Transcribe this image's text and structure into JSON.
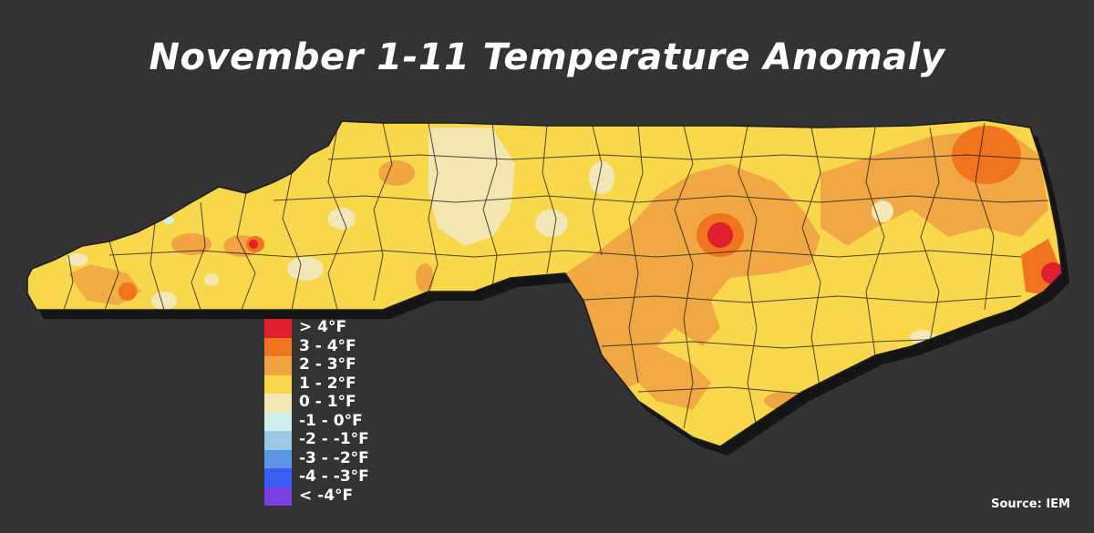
{
  "title": "November 1-11 Temperature Anomaly",
  "source": "Source: IEM",
  "colors": {
    "background": "#333333",
    "state_fill": "#f9d74a",
    "county_lines": "#1e1e1e",
    "state_shadow": "#111111"
  },
  "legend": {
    "items": [
      {
        "label": "> 4°F",
        "color": "#dd1f2e"
      },
      {
        "label": "3 - 4°F",
        "color": "#f0741e"
      },
      {
        "label": "2 - 3°F",
        "color": "#f0a442"
      },
      {
        "label": "1 - 2°F",
        "color": "#f9d74a"
      },
      {
        "label": "0 - 1°F",
        "color": "#f2e7b6"
      },
      {
        "label": "-1 - 0°F",
        "color": "#cdefee"
      },
      {
        "label": "-2 - -1°F",
        "color": "#9bc9e8"
      },
      {
        "label": "-3 - -2°F",
        "color": "#5b96e6"
      },
      {
        "label": "-4 - -3°F",
        "color": "#3a5ef3"
      },
      {
        "label": "< -4°F",
        "color": "#7a3de0"
      }
    ]
  }
}
